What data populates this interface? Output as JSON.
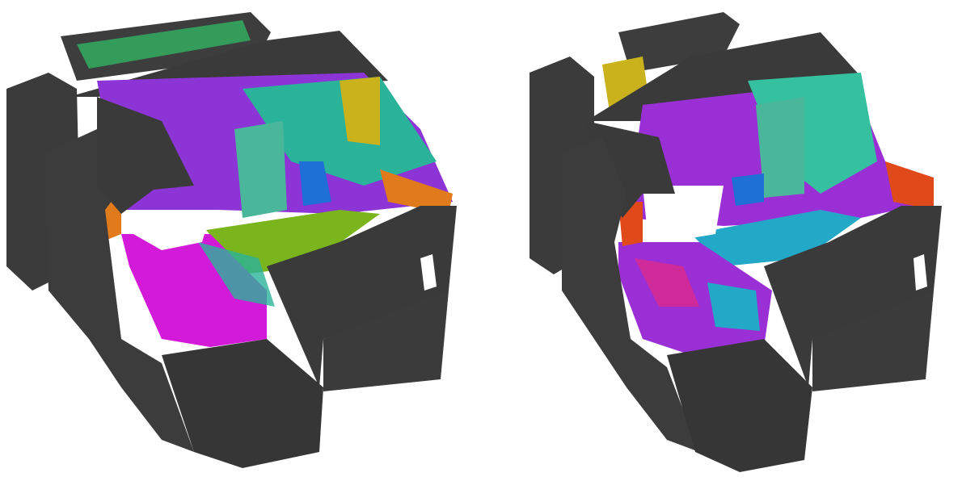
{
  "figure": {
    "panels": [
      {
        "id": "left",
        "description_hidden": "",
        "segment_colors": [
          "#d31ad8",
          "#8c34d6",
          "#7ab51e",
          "#2bb39a",
          "#e07a1b",
          "#1e6fd6",
          "#c9b21c",
          "#2fd06c"
        ],
        "mesh_color": "#3a3a3a"
      },
      {
        "id": "right",
        "description_hidden": "",
        "segment_colors": [
          "#9b2fd6",
          "#23a8c7",
          "#cf2a9a",
          "#2bb39a",
          "#e04a1b",
          "#1e6fd6",
          "#c9b21c",
          "#35c0a0"
        ],
        "mesh_color": "#3a3a3a"
      }
    ]
  }
}
